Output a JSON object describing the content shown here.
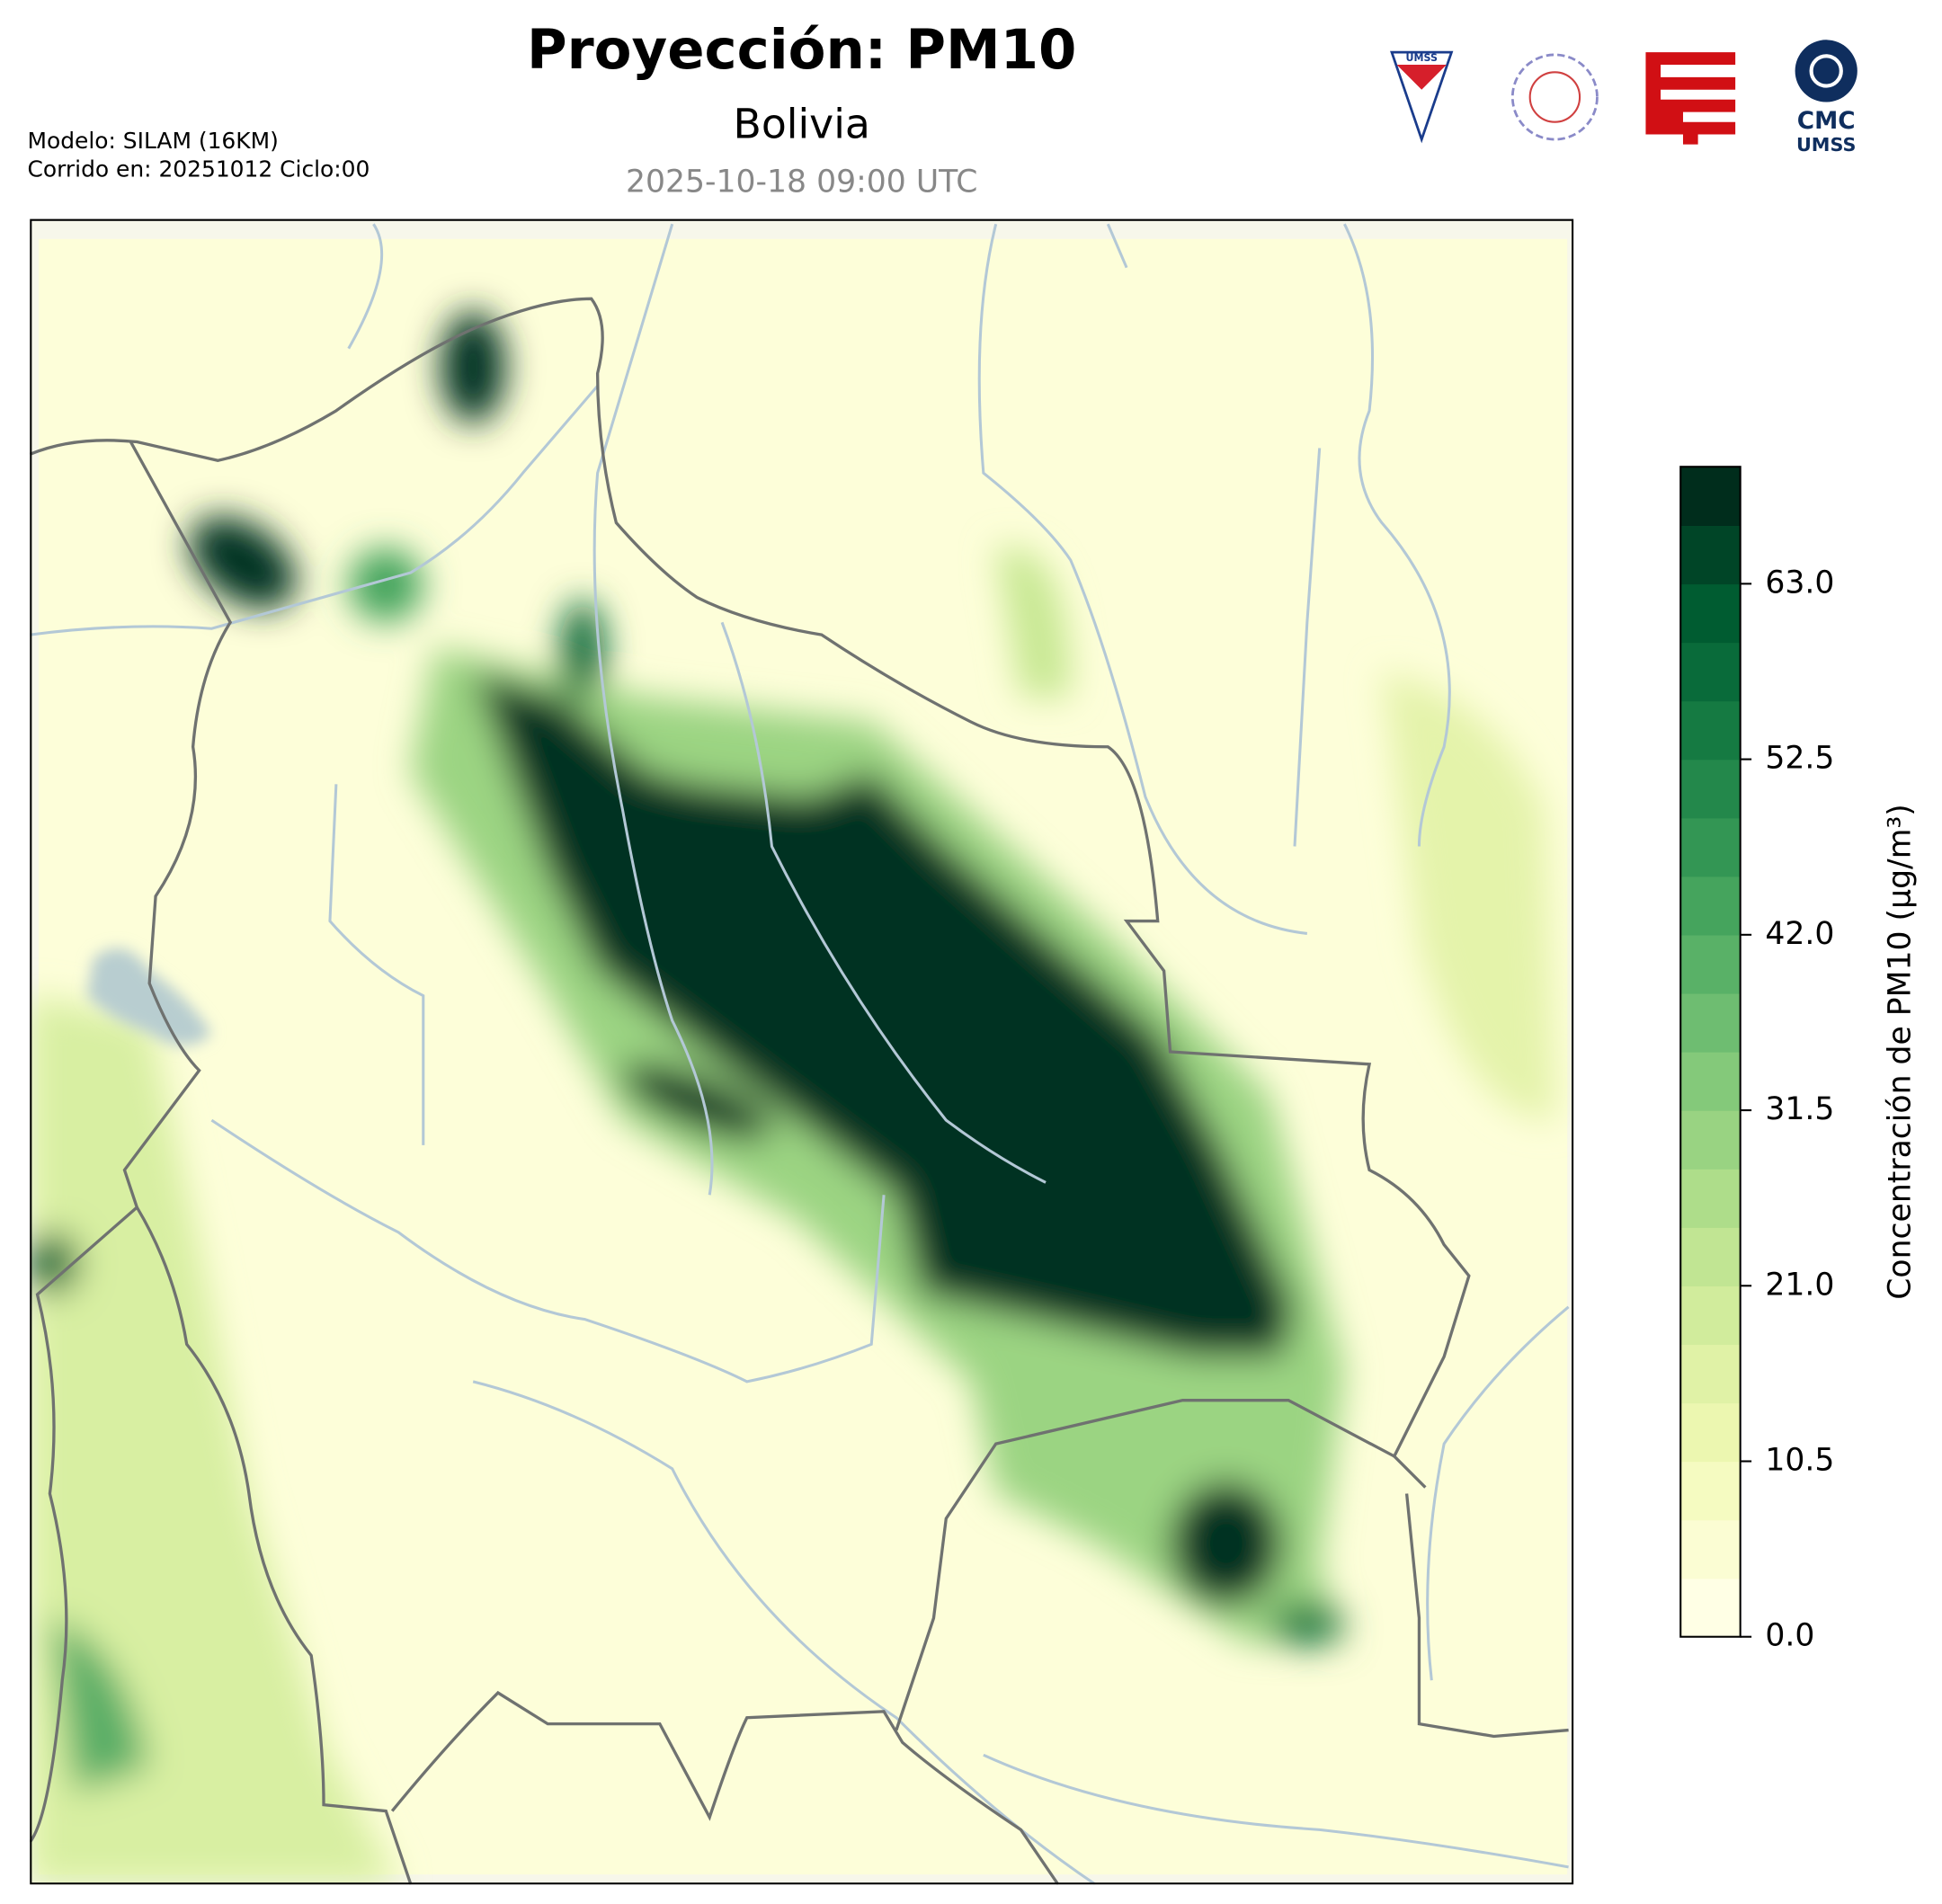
{
  "header": {
    "title": "Proyección: PM10",
    "subtitle": "Bolivia",
    "datetime": "2025-10-18 09:00 UTC",
    "model": "Modelo: SILAM (16KM)",
    "run": "Corrido en: 20251012 Ciclo:00"
  },
  "logos": {
    "umss": "UMSS",
    "cmc": "CMC",
    "cmc_umss": "UMSS"
  },
  "chart_data": {
    "type": "colorbar",
    "label": "Concentración de PM10 (μg/m³)",
    "clim": [
      0,
      70
    ],
    "ticks": [
      {
        "value": 0,
        "label": "0.0"
      },
      10.5,
      {
        "value": 21,
        "label": "21.0"
      },
      31.5,
      {
        "value": 42,
        "label": "42.0"
      },
      52.5,
      {
        "value": 63,
        "label": "63.0"
      }
    ],
    "colors": [
      "#ffffe5",
      "#fbfdd3",
      "#f5fbc1",
      "#ecf7b0",
      "#e0f2a6",
      "#d1ec9c",
      "#c1e593",
      "#aedd8a",
      "#99d382",
      "#84c97a",
      "#6ebd71",
      "#59b167",
      "#45a45d",
      "#339654",
      "#23884b",
      "#157a42",
      "#096b3a",
      "#005c31",
      "#004527",
      "#002d1c"
    ]
  }
}
